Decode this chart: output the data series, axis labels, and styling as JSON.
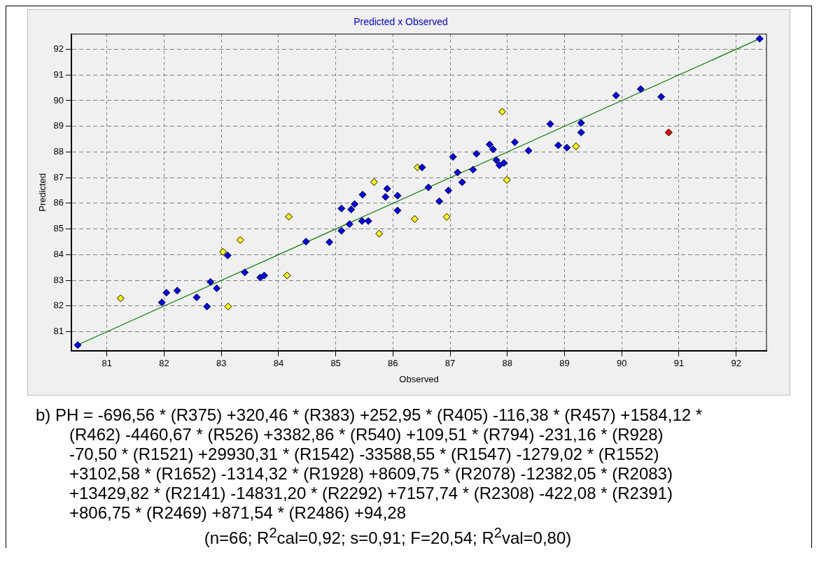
{
  "chart_data": {
    "type": "scatter",
    "title": "Predicted x Observed",
    "xlabel": "Observed",
    "ylabel": "Predicted",
    "xlim": [
      80.38,
      92.53
    ],
    "xticks": [
      81,
      82,
      83,
      84,
      85,
      86,
      87,
      88,
      89,
      90,
      91,
      92
    ],
    "ylim": [
      80.26,
      92.59
    ],
    "yticks": [
      81,
      82,
      83,
      84,
      85,
      86,
      87,
      88,
      89,
      90,
      91,
      92
    ],
    "grid": true,
    "legend": false,
    "marker": "diamond",
    "series": [
      {
        "color": "#0000ff",
        "x": [
          80.49,
          81.96,
          82.04,
          82.23,
          82.57,
          82.75,
          82.81,
          82.92,
          83.11,
          83.41,
          83.68,
          83.75,
          84.48,
          84.89,
          85.1,
          85.24,
          85.46,
          85.57,
          85.1,
          85.27,
          85.33,
          85.47,
          85.87,
          85.9,
          86.08,
          86.08,
          86.51,
          86.62,
          86.81,
          86.97,
          87.05,
          87.13,
          87.21,
          87.4,
          87.46,
          87.69,
          87.75,
          87.81,
          87.86,
          87.94,
          88.13,
          88.37,
          88.89,
          89.04,
          89.29,
          89.29,
          88.75,
          89.9,
          90.33,
          90.69,
          92.41
        ],
        "values": [
          80.48,
          82.14,
          82.52,
          82.6,
          82.34,
          81.98,
          82.94,
          82.69,
          83.97,
          83.31,
          83.11,
          83.19,
          84.51,
          84.49,
          84.93,
          85.19,
          85.31,
          85.31,
          85.8,
          85.76,
          85.97,
          86.34,
          86.25,
          86.57,
          86.3,
          85.72,
          87.4,
          86.62,
          86.08,
          86.5,
          87.81,
          87.2,
          86.82,
          87.31,
          87.93,
          88.29,
          88.1,
          87.68,
          87.48,
          87.57,
          88.38,
          88.05,
          88.26,
          88.17,
          88.76,
          89.13,
          89.09,
          90.2,
          90.45,
          90.15,
          92.41
        ]
      },
      {
        "color": "#ffff00",
        "x": [
          81.24,
          83.12,
          83.03,
          83.33,
          84.15,
          84.18,
          85.76,
          85.67,
          86.38,
          86.43,
          86.94,
          87.99,
          89.2,
          87.91
        ],
        "values": [
          82.3,
          81.98,
          84.11,
          84.57,
          83.19,
          85.48,
          84.82,
          86.83,
          85.39,
          87.4,
          85.47,
          86.91,
          88.22,
          89.57
        ]
      },
      {
        "color": "#ff0000",
        "x": [
          90.82
        ],
        "values": [
          88.76
        ]
      },
      {
        "type": "line",
        "marker": "none",
        "color": "#008000",
        "x": [
          80.48,
          92.41
        ],
        "values": [
          80.48,
          92.41
        ]
      }
    ],
    "annotations": [
      "b) PH = -696,56 * (R375) +320,46 * (R383) +252,95 * (R405) -116,38 * (R457) +1584,12 * (R462) -4460,67 * (R526) +3382,86 * (R540) +109,51 * (R794) -231,16 * (R928) -70,50 * (R1521) +29930,31 * (R1542) -33588,55 * (R1547) -1279,02 * (R1552) +3102,58 * (R1652) -1314,32 * (R1928) +8609,75 * (R2078) -12382,05 * (R2083) +13429,82 * (R2141) -14831,20 * (R2292) +7157,74 * (R2308) -422,08 * (R2391) +806,75 * (R2469) +871,54 * (R2486) +94,28",
      "(n=66; R$^{2}$cal=0,92; s=0,91; F=20,54; R$^{2}$val=0,80)"
    ]
  }
}
